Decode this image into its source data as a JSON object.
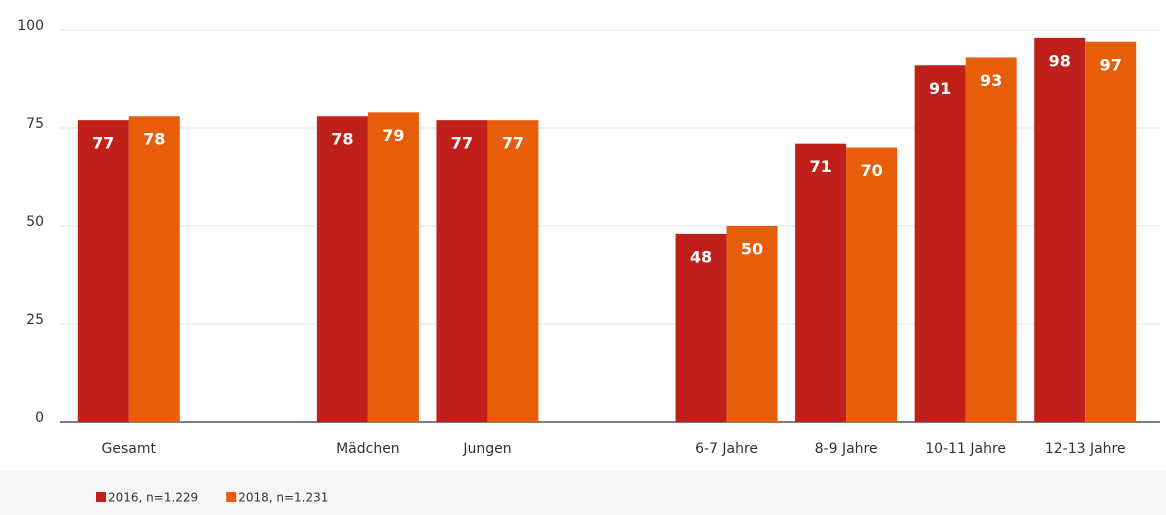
{
  "chart_data": {
    "type": "bar",
    "categories": [
      "Gesamt",
      null,
      "Mädchen",
      "Jungen",
      null,
      "6-7 Jahre",
      "8-9 Jahre",
      "10-11 Jahre",
      "12-13 Jahre"
    ],
    "series": [
      {
        "name": "2016, n=1.229",
        "color": "#c0201a",
        "values": [
          77,
          null,
          78,
          77,
          null,
          48,
          71,
          91,
          98
        ]
      },
      {
        "name": "2018, n=1.231",
        "color": "#e85d0a",
        "values": [
          78,
          null,
          79,
          77,
          null,
          50,
          70,
          93,
          97
        ]
      }
    ],
    "ylim": [
      0,
      100
    ],
    "yticks": [
      0,
      25,
      50,
      75,
      100
    ],
    "grid": true
  }
}
